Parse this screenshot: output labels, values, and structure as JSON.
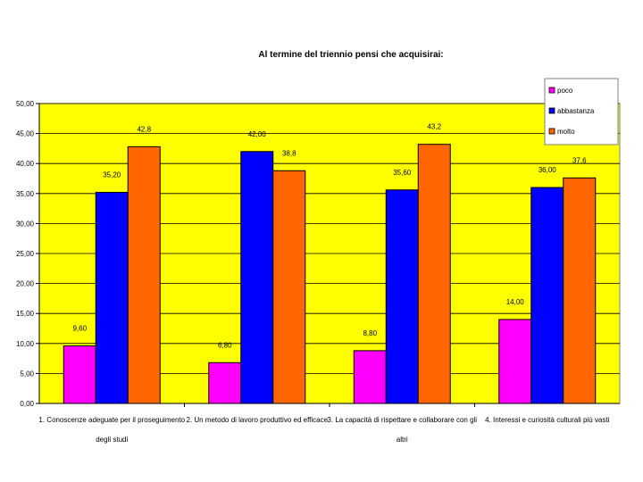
{
  "chart_data": {
    "type": "bar",
    "title": "Al termine del triennio pensi che acquisirai:",
    "categories": [
      [
        "1. Conoscenze adeguate per il proseguimento",
        "degli studi"
      ],
      [
        "2. Un metodo di lavoro produttivo ed efficace"
      ],
      [
        "3. La capacità di rispettare e collaborare con gli",
        "altri"
      ],
      [
        "4. Interessi e curiosità culturali più vasti"
      ]
    ],
    "series": [
      {
        "name": "poco",
        "color": "#ff00ff",
        "values": [
          9.6,
          6.8,
          8.8,
          14.0
        ],
        "labels": [
          "9,60",
          "6,80",
          "8,80",
          "14,00"
        ]
      },
      {
        "name": "abbastanza",
        "color": "#0000ff",
        "values": [
          35.2,
          42.0,
          35.6,
          36.0
        ],
        "labels": [
          "35,20",
          "42,00",
          "35,60",
          "36,00"
        ]
      },
      {
        "name": "molto",
        "color": "#ff6600",
        "values": [
          42.8,
          38.8,
          43.2,
          37.6
        ],
        "labels": [
          "42,8",
          "38,8",
          "43,2",
          "37,6"
        ]
      }
    ],
    "yticks": [
      "0,00",
      "5,00",
      "10,00",
      "15,00",
      "20,00",
      "25,00",
      "30,00",
      "35,00",
      "40,00",
      "45,00",
      "50,00"
    ],
    "ylim": [
      0,
      50
    ],
    "ystep": 5,
    "grid": true,
    "plot_background": "#ffff00",
    "legend_position": "top-right",
    "xlabel": "",
    "ylabel": ""
  }
}
